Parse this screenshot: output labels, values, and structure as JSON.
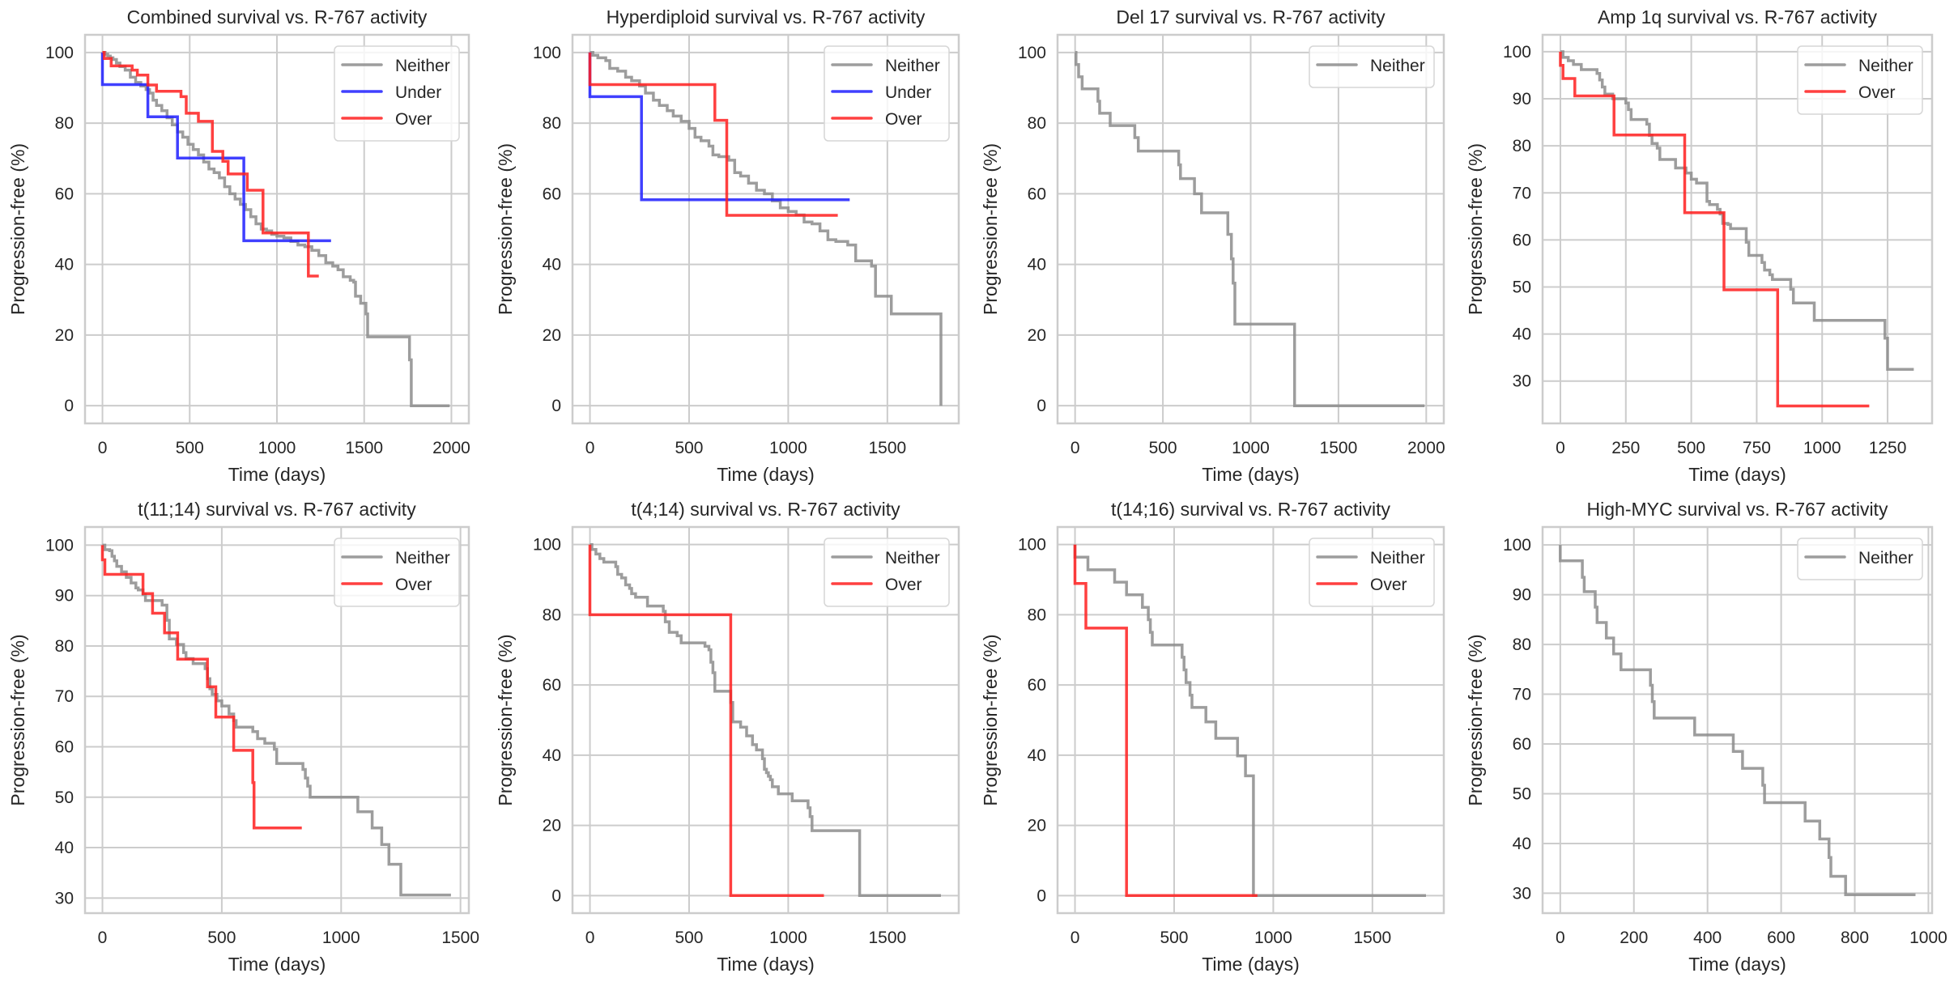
{
  "chart_data": [
    {
      "type": "line",
      "step": true,
      "title": "Combined survival vs. R-767 activity",
      "xlabel": "Time (days)",
      "ylabel": "Progression-free (%)",
      "xlim": [
        -100,
        2100
      ],
      "ylim": [
        -5,
        105
      ],
      "xticks": [
        0,
        500,
        1000,
        1500,
        2000
      ],
      "yticks": [
        0,
        20,
        40,
        60,
        80,
        100
      ],
      "grid": true,
      "legend": "top-right",
      "series": [
        {
          "name": "Neither",
          "color": "#8c8c8c",
          "x": [
            0,
            15,
            30,
            45,
            60,
            80,
            100,
            130,
            160,
            190,
            220,
            250,
            270,
            290,
            310,
            340,
            370,
            400,
            430,
            460,
            490,
            520,
            550,
            580,
            610,
            640,
            670,
            700,
            730,
            760,
            790,
            820,
            850,
            880,
            910,
            940,
            970,
            1000,
            1040,
            1080,
            1120,
            1160,
            1200,
            1240,
            1280,
            1320,
            1350,
            1380,
            1420,
            1440,
            1450,
            1480,
            1510,
            1520,
            1760,
            1770,
            1990
          ],
          "y": [
            100,
            99.5,
            99,
            98.5,
            98,
            97,
            96,
            95,
            93,
            91.5,
            90.5,
            89.5,
            88.5,
            86.5,
            85,
            83.5,
            81.5,
            79.5,
            77.5,
            76,
            74,
            72.5,
            71,
            69,
            67,
            66,
            64.5,
            62,
            60,
            58.5,
            57,
            55.5,
            53.5,
            51.5,
            50,
            49.5,
            48.5,
            48,
            47.5,
            46.5,
            45.5,
            45,
            44,
            42.5,
            40.5,
            39.5,
            38.5,
            36.5,
            35.5,
            35,
            31,
            29,
            26,
            19.5,
            13,
            0,
            0
          ]
        },
        {
          "name": "Under",
          "color": "#1f1fff",
          "x": [
            0,
            0,
            260,
            430,
            810,
            1310
          ],
          "y": [
            100,
            90.9,
            81.8,
            70.1,
            46.7,
            46.7
          ]
        },
        {
          "name": "Over",
          "color": "#ff1f1f",
          "x": [
            0,
            10,
            50,
            170,
            200,
            260,
            310,
            450,
            480,
            550,
            630,
            690,
            720,
            830,
            920,
            1180,
            1240
          ],
          "y": [
            100,
            98.3,
            96.2,
            95,
            93.6,
            90.8,
            89,
            87.5,
            82.8,
            80.5,
            72,
            69.2,
            65.6,
            61,
            48.9,
            36.7,
            36.7
          ]
        }
      ]
    },
    {
      "type": "line",
      "step": true,
      "title": "Hyperdiploid survival vs. R-767 activity",
      "xlabel": "Time (days)",
      "ylabel": "Progression-free (%)",
      "xlim": [
        -88,
        1860
      ],
      "ylim": [
        -5,
        105
      ],
      "xticks": [
        0,
        500,
        1000,
        1500
      ],
      "yticks": [
        0,
        20,
        40,
        60,
        80,
        100
      ],
      "grid": true,
      "legend": "top-right",
      "series": [
        {
          "name": "Neither",
          "color": "#8c8c8c",
          "x": [
            0,
            15,
            40,
            80,
            100,
            140,
            180,
            210,
            250,
            280,
            320,
            350,
            390,
            420,
            460,
            500,
            530,
            560,
            600,
            620,
            650,
            700,
            730,
            760,
            800,
            840,
            880,
            920,
            960,
            1000,
            1040,
            1080,
            1120,
            1160,
            1200,
            1240,
            1300,
            1340,
            1380,
            1420,
            1440,
            1510,
            1520,
            1770
          ],
          "y": [
            100,
            99.2,
            98.5,
            97.7,
            95.5,
            94.7,
            93,
            92,
            90.5,
            88.5,
            86.5,
            85,
            83.5,
            82,
            80.5,
            78.5,
            76,
            75,
            73.5,
            71,
            70.5,
            69.5,
            66,
            65,
            63,
            61,
            60,
            58,
            56,
            55,
            54,
            52,
            51.5,
            49.5,
            47,
            46.5,
            45.5,
            41,
            41,
            39.5,
            31,
            31,
            26,
            0
          ]
        },
        {
          "name": "Under",
          "color": "#1f1fff",
          "x": [
            0,
            0,
            260,
            1310
          ],
          "y": [
            100,
            87.5,
            58.3,
            58.3
          ]
        },
        {
          "name": "Over",
          "color": "#ff1f1f",
          "x": [
            0,
            0,
            630,
            690,
            1250
          ],
          "y": [
            100,
            90.9,
            80.8,
            53.9,
            53.9
          ]
        }
      ]
    },
    {
      "type": "line",
      "step": true,
      "title": "Del 17 survival vs. R-767 activity",
      "xlabel": "Time (days)",
      "ylabel": "Progression-free (%)",
      "xlim": [
        -100,
        2100
      ],
      "ylim": [
        -5,
        105
      ],
      "xticks": [
        0,
        500,
        1000,
        1500,
        2000
      ],
      "yticks": [
        0,
        20,
        40,
        60,
        80,
        100
      ],
      "grid": true,
      "legend": "top-right",
      "series": [
        {
          "name": "Neither",
          "color": "#8c8c8c",
          "x": [
            0,
            5,
            20,
            40,
            130,
            140,
            200,
            340,
            360,
            590,
            600,
            680,
            720,
            870,
            890,
            900,
            910,
            1250,
            1990
          ],
          "y": [
            100,
            96.6,
            93.1,
            89.7,
            86.2,
            82.8,
            79.3,
            75.9,
            72.1,
            68.2,
            64.3,
            60,
            54.6,
            48.5,
            41.6,
            34.7,
            23.1,
            0,
            0
          ]
        }
      ]
    },
    {
      "type": "line",
      "step": true,
      "title": "Amp 1q survival vs. R-767 activity",
      "xlabel": "Time (days)",
      "ylabel": "Progression-free (%)",
      "xlim": [
        -68,
        1420
      ],
      "ylim": [
        21,
        103.6
      ],
      "xticks": [
        0,
        250,
        500,
        750,
        1000,
        1250
      ],
      "yticks": [
        30,
        40,
        50,
        60,
        70,
        80,
        90,
        100
      ],
      "grid": true,
      "legend": "top-right",
      "series": [
        {
          "name": "Neither",
          "color": "#8c8c8c",
          "x": [
            0,
            10,
            30,
            50,
            80,
            140,
            150,
            160,
            170,
            200,
            250,
            260,
            270,
            280,
            330,
            340,
            350,
            370,
            380,
            390,
            440,
            450,
            480,
            500,
            520,
            560,
            570,
            600,
            610,
            620,
            640,
            650,
            680,
            710,
            720,
            730,
            770,
            780,
            800,
            810,
            820,
            880,
            890,
            900,
            970,
            980,
            1000,
            1240,
            1250,
            1260,
            1350
          ],
          "y": [
            100,
            98.8,
            98.1,
            97.3,
            96.2,
            95.4,
            94,
            92.5,
            91,
            90,
            89.1,
            87.7,
            85.6,
            85.6,
            84.6,
            82.2,
            80.5,
            79.5,
            77.1,
            77.1,
            75.3,
            75.3,
            74.2,
            72.9,
            72.1,
            68.2,
            67.5,
            66.5,
            65.5,
            63.5,
            63.3,
            62.4,
            62.4,
            59.5,
            56.7,
            56.7,
            55.2,
            53.6,
            52.6,
            51.6,
            51.6,
            49.5,
            46.6,
            46.6,
            42.9,
            42.9,
            42.9,
            39.1,
            32.5,
            32.5,
            32.5
          ]
        },
        {
          "name": "Over",
          "color": "#ff1f1f",
          "x": [
            0,
            0,
            10,
            55,
            205,
            475,
            625,
            830,
            1180
          ],
          "y": [
            100,
            97.1,
            94.3,
            90.6,
            82.3,
            65.8,
            49.4,
            24.7,
            24.7
          ]
        }
      ]
    },
    {
      "type": "line",
      "step": true,
      "title": "t(11;14) survival vs. R-767 activity",
      "xlabel": "Time (days)",
      "ylabel": "Progression-free (%)",
      "xlim": [
        -73,
        1535
      ],
      "ylim": [
        27,
        103.6
      ],
      "xticks": [
        0,
        500,
        1000,
        1500
      ],
      "yticks": [
        30,
        40,
        50,
        60,
        70,
        80,
        90,
        100
      ],
      "grid": true,
      "legend": "top-right",
      "series": [
        {
          "name": "Neither",
          "color": "#8c8c8c",
          "x": [
            0,
            10,
            30,
            40,
            50,
            60,
            80,
            100,
            120,
            140,
            150,
            170,
            180,
            210,
            250,
            270,
            280,
            310,
            340,
            350,
            380,
            430,
            440,
            450,
            460,
            480,
            500,
            530,
            550,
            560,
            580,
            630,
            650,
            680,
            720,
            730,
            760,
            840,
            850,
            860,
            870,
            880,
            1070,
            1130,
            1170,
            1200,
            1250,
            1460
          ],
          "y": [
            100,
            99.1,
            98.9,
            97.8,
            96.9,
            95.8,
            94.7,
            93.6,
            92.5,
            91.5,
            91.1,
            90.2,
            89,
            89,
            88.1,
            85.1,
            81.4,
            80.3,
            78.7,
            77.5,
            76.5,
            75.5,
            73.5,
            71.5,
            70.4,
            69.1,
            68.1,
            66.5,
            65.2,
            63.9,
            63.9,
            63,
            61.6,
            60.7,
            59.5,
            56.7,
            56.7,
            55.5,
            53.8,
            52.2,
            50,
            50,
            47.1,
            43.9,
            40.6,
            36.7,
            30.6,
            30.6
          ]
        },
        {
          "name": "Over",
          "color": "#ff1f1f",
          "x": [
            0,
            0,
            10,
            170,
            210,
            260,
            315,
            440,
            475,
            550,
            630,
            635,
            835
          ],
          "y": [
            100,
            97.1,
            94.2,
            90.4,
            86.5,
            82.6,
            77.4,
            71.9,
            65.9,
            59.3,
            52.9,
            43.9,
            43.9
          ]
        }
      ]
    },
    {
      "type": "line",
      "step": true,
      "title": "t(4;14) survival vs. R-767 activity",
      "xlabel": "Time (days)",
      "ylabel": "Progression-free (%)",
      "xlim": [
        -88,
        1860
      ],
      "ylim": [
        -5,
        105
      ],
      "xticks": [
        0,
        500,
        1000,
        1500
      ],
      "yticks": [
        0,
        20,
        40,
        60,
        80,
        100
      ],
      "grid": true,
      "legend": "top-right",
      "series": [
        {
          "name": "Neither",
          "color": "#8c8c8c",
          "x": [
            0,
            10,
            30,
            50,
            70,
            110,
            130,
            140,
            160,
            180,
            200,
            210,
            230,
            280,
            290,
            350,
            370,
            380,
            400,
            440,
            460,
            580,
            600,
            610,
            620,
            630,
            700,
            710,
            720,
            760,
            790,
            820,
            840,
            870,
            880,
            890,
            900,
            910,
            920,
            950,
            960,
            1020,
            1030,
            1100,
            1110,
            1120,
            1360,
            1770
          ],
          "y": [
            100,
            98.6,
            97.3,
            96,
            95,
            95,
            93.7,
            91.5,
            90.5,
            88.5,
            87.5,
            86,
            85,
            85,
            82.5,
            82.5,
            81,
            78,
            75,
            74,
            72,
            71,
            70,
            66.5,
            63.5,
            58.2,
            58.2,
            55,
            49.5,
            48,
            45.5,
            43,
            41.5,
            39,
            36,
            35,
            34,
            33,
            31,
            29,
            29,
            27,
            27,
            25,
            22.5,
            18.5,
            0,
            0
          ]
        },
        {
          "name": "Over",
          "color": "#ff1f1f",
          "x": [
            0,
            0,
            710,
            1180
          ],
          "y": [
            100,
            80,
            0,
            0
          ]
        }
      ]
    },
    {
      "type": "line",
      "step": true,
      "title": "t(14;16) survival vs. R-767 activity",
      "xlabel": "Time (days)",
      "ylabel": "Progression-free (%)",
      "xlim": [
        -88,
        1860
      ],
      "ylim": [
        -5,
        105
      ],
      "xticks": [
        0,
        500,
        1000,
        1500
      ],
      "yticks": [
        0,
        20,
        40,
        60,
        80,
        100
      ],
      "grid": true,
      "legend": "top-right",
      "series": [
        {
          "name": "Neither",
          "color": "#8c8c8c",
          "x": [
            0,
            0,
            65,
            200,
            260,
            340,
            370,
            380,
            390,
            540,
            550,
            560,
            580,
            590,
            660,
            710,
            820,
            860,
            900,
            910,
            1770
          ],
          "y": [
            100,
            96.4,
            92.8,
            89.3,
            85.7,
            82.1,
            78.6,
            75,
            71.4,
            67.9,
            64.3,
            60.7,
            57.1,
            53.6,
            49.5,
            44.8,
            39.8,
            34.1,
            0,
            0,
            0
          ]
        },
        {
          "name": "Over",
          "color": "#ff1f1f",
          "x": [
            0,
            0,
            55,
            260,
            920
          ],
          "y": [
            100,
            88.9,
            76.2,
            0,
            0
          ]
        }
      ]
    },
    {
      "type": "line",
      "step": true,
      "title": "High-MYC survival vs. R-767 activity",
      "xlabel": "Time (days)",
      "ylabel": "Progression-free (%)",
      "xlim": [
        -48,
        1010
      ],
      "ylim": [
        26,
        103.6
      ],
      "xticks": [
        0,
        200,
        400,
        600,
        800,
        1000
      ],
      "yticks": [
        30,
        40,
        50,
        60,
        70,
        80,
        90,
        100
      ],
      "grid": true,
      "legend": "top-right",
      "series": [
        {
          "name": "Neither",
          "color": "#8c8c8c",
          "x": [
            0,
            0,
            60,
            65,
            95,
            100,
            105,
            125,
            145,
            165,
            245,
            250,
            255,
            260,
            365,
            470,
            495,
            550,
            555,
            560,
            665,
            705,
            730,
            735,
            775,
            965
          ],
          "y": [
            100,
            96.8,
            93.5,
            90.6,
            87.5,
            84.4,
            84.4,
            81.3,
            78.1,
            74.9,
            71.8,
            68.5,
            65.2,
            65.2,
            61.8,
            58.5,
            55.1,
            51.7,
            48.2,
            48.2,
            44.5,
            40.9,
            37.2,
            33.4,
            29.7,
            29.7
          ]
        }
      ]
    }
  ]
}
